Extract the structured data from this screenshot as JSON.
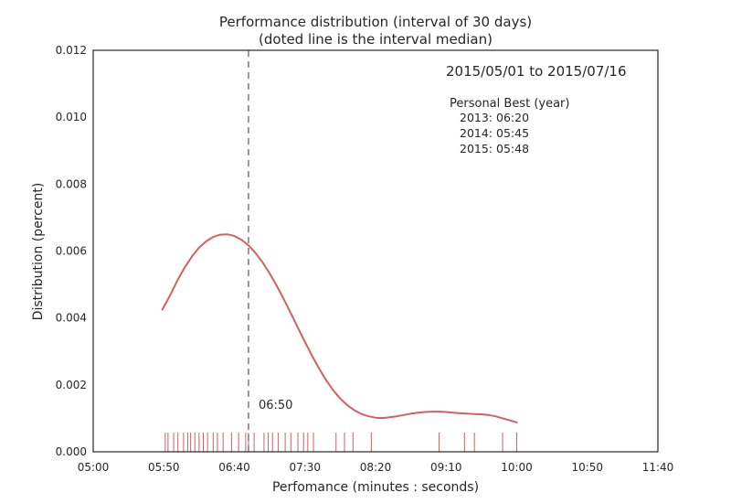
{
  "chart_data": {
    "type": "line",
    "title": "Performance distribution (interval of 30 days)",
    "subtitle": "(doted line is the interval median)",
    "xlabel": "Perfomance (minutes : seconds)",
    "ylabel": "Distribution (percent)",
    "xlim": [
      300,
      700
    ],
    "ylim": [
      0,
      0.012
    ],
    "x_ticks": [
      {
        "value": 300,
        "label": "05:00"
      },
      {
        "value": 350,
        "label": "05:50"
      },
      {
        "value": 400,
        "label": "06:40"
      },
      {
        "value": 450,
        "label": "07:30"
      },
      {
        "value": 500,
        "label": "08:20"
      },
      {
        "value": 550,
        "label": "09:10"
      },
      {
        "value": 600,
        "label": "10:00"
      },
      {
        "value": 650,
        "label": "10:50"
      },
      {
        "value": 700,
        "label": "11:40"
      }
    ],
    "y_ticks": [
      {
        "value": 0,
        "label": "0.000"
      },
      {
        "value": 0.002,
        "label": "0.002"
      },
      {
        "value": 0.004,
        "label": "0.004"
      },
      {
        "value": 0.006,
        "label": "0.006"
      },
      {
        "value": 0.008,
        "label": "0.008"
      },
      {
        "value": 0.01,
        "label": "0.010"
      },
      {
        "value": 0.012,
        "label": "0.012"
      }
    ],
    "grid": false,
    "series": [
      {
        "color": "#d65f5f",
        "x": [
          349,
          355,
          360,
          365,
          370,
          375,
          380,
          385,
          390,
          395,
          400,
          405,
          410,
          415,
          420,
          425,
          430,
          435,
          440,
          445,
          450,
          455,
          460,
          465,
          470,
          475,
          480,
          485,
          490,
          495,
          500,
          505,
          510,
          515,
          520,
          525,
          530,
          535,
          540,
          545,
          550,
          555,
          560,
          565,
          570,
          575,
          580,
          585,
          590,
          595,
          600
        ],
        "y": [
          0.00425,
          0.00472,
          0.00515,
          0.00552,
          0.00584,
          0.0061,
          0.00629,
          0.00642,
          0.00649,
          0.0065,
          0.00645,
          0.00634,
          0.00617,
          0.00594,
          0.00566,
          0.00533,
          0.00496,
          0.00456,
          0.00414,
          0.00371,
          0.00328,
          0.00287,
          0.00249,
          0.00214,
          0.00184,
          0.00159,
          0.00139,
          0.00124,
          0.00113,
          0.00106,
          0.00102,
          0.00101,
          0.00103,
          0.00106,
          0.0011,
          0.00114,
          0.00117,
          0.00119,
          0.0012,
          0.0012,
          0.00119,
          0.00117,
          0.00115,
          0.00114,
          0.00113,
          0.00112,
          0.0011,
          0.00106,
          0.001,
          0.00094,
          0.00088
        ]
      }
    ],
    "rug": {
      "color": "#d65f5f",
      "x": [
        351,
        353,
        357,
        360,
        364,
        367,
        369,
        372,
        375,
        378,
        381,
        385,
        388,
        392,
        398,
        403,
        408,
        410,
        414,
        421,
        424,
        427,
        431,
        436,
        440,
        445,
        449,
        452,
        456,
        472,
        478,
        484,
        497,
        545,
        563,
        570,
        590,
        600
      ]
    },
    "median": {
      "x": 410,
      "label": "06:50",
      "label_y": 0.0014,
      "color": "#7a7a7a"
    },
    "annotations": {
      "date_range": "2015/05/01 to 2015/07/16",
      "personal_best_title": "Personal Best (year)",
      "personal_bests": [
        "2013: 06:20",
        "2014: 05:45",
        "2015: 05:48"
      ]
    }
  }
}
